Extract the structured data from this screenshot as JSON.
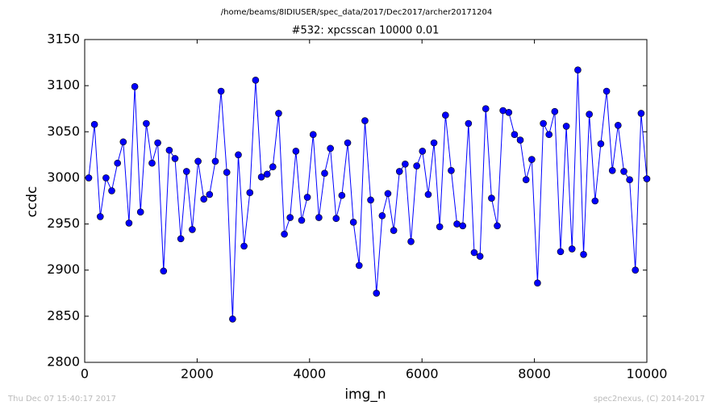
{
  "chart_data": {
    "type": "line",
    "suptitle": "/home/beams/8IDIUSER/spec_data/2017/Dec2017/archer20171204",
    "title": "#532: xpcsscan 10000 0.01",
    "xlabel": "img_n",
    "ylabel": "ccdc",
    "timestamp": "Thu Dec 07 15:40:17 2017",
    "credit": "spec2nexus, (C) 2014-2017",
    "x": [
      72,
      174,
      277,
      379,
      481,
      584,
      686,
      788,
      891,
      993,
      1096,
      1198,
      1300,
      1403,
      1505,
      1607,
      1710,
      1812,
      1914,
      2017,
      2119,
      2221,
      2324,
      2426,
      2528,
      2631,
      2733,
      2835,
      2938,
      3040,
      3143,
      3245,
      3347,
      3450,
      3552,
      3654,
      3757,
      3859,
      3961,
      4064,
      4166,
      4268,
      4371,
      4473,
      4575,
      4678,
      4780,
      4882,
      4985,
      5087,
      5190,
      5292,
      5394,
      5497,
      5599,
      5701,
      5804,
      5906,
      6008,
      6111,
      6213,
      6315,
      6418,
      6520,
      6622,
      6725,
      6827,
      6929,
      7032,
      7134,
      7237,
      7339,
      7441,
      7544,
      7646,
      7748,
      7851,
      7953,
      8055,
      8158,
      8260,
      8362,
      8465,
      8567,
      8669,
      8772,
      8874,
      8976,
      9079,
      9181,
      9284,
      9386,
      9488,
      9591,
      9693,
      9795,
      9898,
      10000
    ],
    "series": [
      {
        "name": "ccdc",
        "color": "#0000ff",
        "marker_color": "#0000ff",
        "values": [
          3000,
          3058,
          2958,
          3000,
          2986,
          3016,
          3039,
          2951,
          3099,
          2963,
          3059,
          3016,
          3038,
          2899,
          3030,
          3021,
          2934,
          3007,
          2944,
          3018,
          2977,
          2982,
          3018,
          3094,
          3006,
          2847,
          3025,
          2926,
          2984,
          3106,
          3001,
          3004,
          3012,
          3070,
          2939,
          2957,
          3029,
          2954,
          2979,
          3047,
          2957,
          3005,
          3032,
          2956,
          2981,
          3038,
          2952,
          2905,
          3062,
          2976,
          2875,
          2959,
          2983,
          2943,
          3007,
          3015,
          2931,
          3013,
          3029,
          2982,
          3038,
          2947,
          3068,
          3008,
          2950,
          2948,
          3059,
          2919,
          2915,
          3075,
          2978,
          2948,
          3073,
          3071,
          3047,
          3041,
          2998,
          3020,
          2886,
          3059,
          3047,
          3072,
          2920,
          3056,
          2923,
          3117,
          2917,
          3069,
          2975,
          3037,
          3094,
          3008,
          3057,
          3007,
          2998,
          2900,
          3070,
          2999
        ]
      }
    ],
    "xlim": [
      0,
      10000
    ],
    "xticks": [
      0,
      2000,
      4000,
      6000,
      8000,
      10000
    ],
    "ylim": [
      2800,
      3150
    ],
    "yticks": [
      2800,
      2850,
      2900,
      2950,
      3000,
      3050,
      3100,
      3150
    ],
    "grid": false,
    "markers": true
  }
}
